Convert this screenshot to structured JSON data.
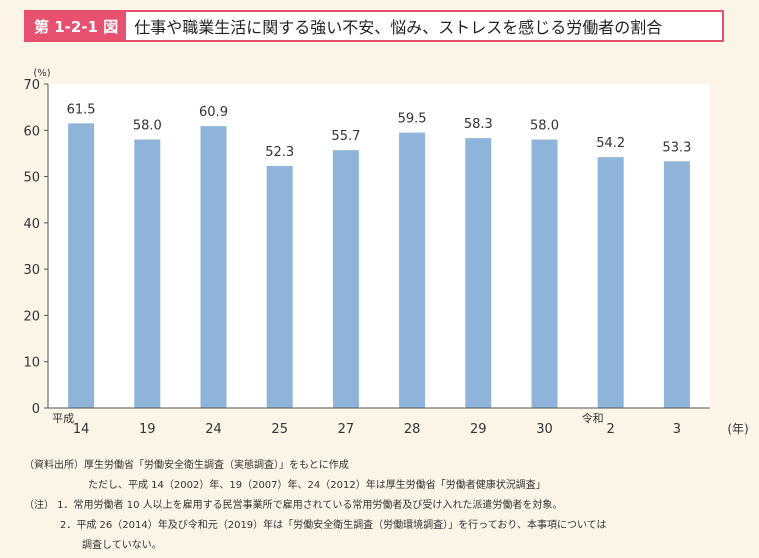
{
  "header": {
    "badge": "第 1-2-1 図",
    "title": "仕事や職業生活に関する強い不安、悩み、ストレスを感じる労働者の割合"
  },
  "chart_data": {
    "type": "bar",
    "categories": [
      "14",
      "19",
      "24",
      "25",
      "27",
      "28",
      "29",
      "30",
      "2",
      "3"
    ],
    "era_labels": {
      "heisei": "平成",
      "reiwa": "令和"
    },
    "values": [
      61.5,
      58.0,
      60.9,
      52.3,
      55.7,
      59.5,
      58.3,
      58.0,
      54.2,
      53.3
    ],
    "value_labels": [
      "61.5",
      "58.0",
      "60.9",
      "52.3",
      "55.7",
      "59.5",
      "58.3",
      "58.0",
      "54.2",
      "53.3"
    ],
    "yticks": [
      0,
      10,
      20,
      30,
      40,
      50,
      60,
      70
    ],
    "ylim": [
      0,
      70
    ],
    "yunit": "(%)",
    "xunit": "(年)",
    "bar_color": "#8fb4d9",
    "plot_bg": "#ffffff"
  },
  "notes": {
    "source": "（資料出所）厚生労働省「労働安全衛生調査（実態調査）」をもとに作成",
    "source_cont": "ただし、平成 14（2002）年、19（2007）年、24（2012）年は厚生労働省「労働者健康状況調査」",
    "note1": "（注） 1．常用労働者 10 人以上を雇用する民営事業所で雇用されている常用労働者及び受け入れた派遣労働者を対象。",
    "note2": "2．平成 26（2014）年及び令和元（2019）年は「労働安全衛生調査（労働環境調査）」を行っており、本事項については",
    "note2_cont": "調査していない。"
  }
}
